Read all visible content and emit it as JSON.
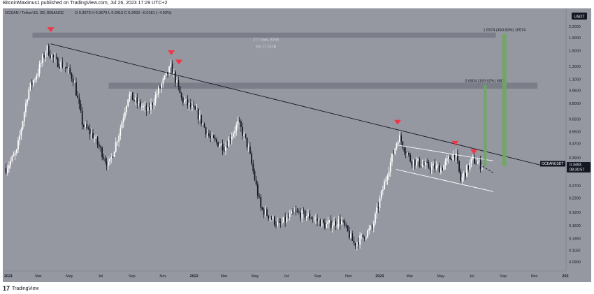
{
  "publisher_line": "BitcoinMaximus1 published on TradingView.com, Jul 26, 2023 17:29 UTC+2",
  "footer_brand": "TradingView",
  "footer_logo": "17",
  "chart_data": {
    "type": "candlestick",
    "symbol_header": "OCEAN / TetherUS, 3D, BINANCE",
    "ohlc_header": "O 0.3673  H 0.3679  L 0.3410  C 0.3493  −0.0181 (−4.93%)",
    "currency_badge": "USDT",
    "last_price": "0.3493",
    "countdown": "08:30:57",
    "symbol_tag": "OCEANUSDT",
    "y_scale": "log",
    "y_ticks": [
      2.2,
      1.9,
      1.6,
      1.3,
      1.1,
      0.95,
      0.8,
      0.65,
      0.55,
      0.47,
      0.39,
      0.33,
      0.27,
      0.23,
      0.19,
      0.16,
      0.135,
      0.115,
      0.099
    ],
    "y_tick_labels": [
      "2.2000",
      "1.9000",
      "1.6000",
      "1.3000",
      "1.1000",
      "0.9500",
      "0.8000",
      "0.6500",
      "0.5500",
      "0.4700",
      "0.3900",
      "0.3300",
      "0.2700",
      "0.2300",
      "0.1900",
      "0.1600",
      "0.1350",
      "0.1150",
      "0.0990"
    ],
    "x_labels": [
      {
        "date": "2021-01-01",
        "label": "2021",
        "bold": true
      },
      {
        "date": "2021-03-01",
        "label": "Mar"
      },
      {
        "date": "2021-05-01",
        "label": "May"
      },
      {
        "date": "2021-07-01",
        "label": "Jul"
      },
      {
        "date": "2021-09-01",
        "label": "Sep"
      },
      {
        "date": "2021-11-01",
        "label": "Nov"
      },
      {
        "date": "2022-01-01",
        "label": "2022",
        "bold": true
      },
      {
        "date": "2022-03-01",
        "label": "Mar"
      },
      {
        "date": "2022-05-01",
        "label": "May"
      },
      {
        "date": "2022-07-01",
        "label": "Jul"
      },
      {
        "date": "2022-09-01",
        "label": "Sep"
      },
      {
        "date": "2022-11-01",
        "label": "Nov"
      },
      {
        "date": "2023-01-01",
        "label": "2023",
        "bold": true
      },
      {
        "date": "2023-03-01",
        "label": "Mar"
      },
      {
        "date": "2023-05-01",
        "label": "May"
      },
      {
        "date": "2023-07-01",
        "label": "Jul"
      },
      {
        "date": "2023-09-01",
        "label": "Sep"
      },
      {
        "date": "2023-11-01",
        "label": "Nov"
      },
      {
        "date": "2024-01-01",
        "label": "202",
        "bold": true
      }
    ],
    "price_path": [
      {
        "date": "2020-12-30",
        "price": 0.34
      },
      {
        "date": "2021-01-20",
        "price": 0.42
      },
      {
        "date": "2021-02-12",
        "price": 0.95
      },
      {
        "date": "2021-03-02",
        "price": 1.2
      },
      {
        "date": "2021-03-20",
        "price": 1.65
      },
      {
        "date": "2021-04-05",
        "price": 1.4
      },
      {
        "date": "2021-04-25",
        "price": 1.3
      },
      {
        "date": "2021-05-12",
        "price": 1.1
      },
      {
        "date": "2021-05-30",
        "price": 0.6
      },
      {
        "date": "2021-06-20",
        "price": 0.52
      },
      {
        "date": "2021-07-20",
        "price": 0.35
      },
      {
        "date": "2021-08-10",
        "price": 0.55
      },
      {
        "date": "2021-08-28",
        "price": 0.9
      },
      {
        "date": "2021-09-15",
        "price": 0.8
      },
      {
        "date": "2021-10-05",
        "price": 0.72
      },
      {
        "date": "2021-10-30",
        "price": 1.0
      },
      {
        "date": "2021-11-20",
        "price": 1.3
      },
      {
        "date": "2021-12-10",
        "price": 0.85
      },
      {
        "date": "2022-01-10",
        "price": 0.7
      },
      {
        "date": "2022-02-05",
        "price": 0.5
      },
      {
        "date": "2022-03-05",
        "price": 0.45
      },
      {
        "date": "2022-04-01",
        "price": 0.62
      },
      {
        "date": "2022-04-20",
        "price": 0.45
      },
      {
        "date": "2022-05-15",
        "price": 0.2
      },
      {
        "date": "2022-06-20",
        "price": 0.16
      },
      {
        "date": "2022-07-20",
        "price": 0.19
      },
      {
        "date": "2022-08-20",
        "price": 0.18
      },
      {
        "date": "2022-09-20",
        "price": 0.16
      },
      {
        "date": "2022-10-20",
        "price": 0.17
      },
      {
        "date": "2022-11-15",
        "price": 0.125
      },
      {
        "date": "2022-12-20",
        "price": 0.155
      },
      {
        "date": "2023-01-20",
        "price": 0.33
      },
      {
        "date": "2023-02-10",
        "price": 0.52
      },
      {
        "date": "2023-03-05",
        "price": 0.38
      },
      {
        "date": "2023-04-05",
        "price": 0.35
      },
      {
        "date": "2023-05-05",
        "price": 0.34
      },
      {
        "date": "2023-06-01",
        "price": 0.42
      },
      {
        "date": "2023-06-12",
        "price": 0.29
      },
      {
        "date": "2023-07-05",
        "price": 0.38
      },
      {
        "date": "2023-07-25",
        "price": 0.349
      }
    ],
    "resistance_zones": [
      {
        "date_start": "2021-02-20",
        "date_end": "2023-08-20",
        "price_low": 1.9,
        "price_high": 2.03
      },
      {
        "date_start": "2021-07-20",
        "date_end": "2023-11-10",
        "price_low": 0.97,
        "price_high": 1.05
      }
    ],
    "descending_resistance_line": {
      "start": {
        "date": "2021-03-28",
        "price": 1.75
      },
      "end": {
        "date": "2023-11-15",
        "price": 0.355
      }
    },
    "channel_upper_line": {
      "start": {
        "date": "2023-02-10",
        "price": 0.46
      },
      "end": {
        "date": "2023-08-15",
        "price": 0.375
      }
    },
    "channel_lower_line": {
      "start": {
        "date": "2023-02-05",
        "price": 0.335
      },
      "end": {
        "date": "2023-08-15",
        "price": 0.25
      }
    },
    "projection_line": {
      "start": {
        "date": "2023-07-25",
        "price": 0.349
      },
      "end": {
        "date": "2023-08-15",
        "price": 0.32
      }
    },
    "targets": [
      {
        "date_start": "2023-07-27",
        "date_end": "2023-08-02",
        "price_from": 0.349,
        "price_to": 1.02,
        "label": "0.6804 (190.92%) 6804"
      },
      {
        "date_start": "2023-09-02",
        "date_end": "2023-09-10",
        "price_from": 0.35,
        "price_to": 2.0,
        "label": "1.6574 (460.60%) 16574"
      }
    ],
    "red_markers": [
      {
        "date": "2021-03-28",
        "price": 2.1
      },
      {
        "date": "2021-11-20",
        "price": 1.55
      },
      {
        "date": "2021-12-05",
        "price": 1.37
      },
      {
        "date": "2023-02-08",
        "price": 0.62
      },
      {
        "date": "2023-06-01",
        "price": 0.47
      },
      {
        "date": "2023-07-08",
        "price": 0.42
      }
    ],
    "measure_text": [
      "277 bars, 829d",
      "Vol 17.151B"
    ],
    "measure_date": "2022-05-25",
    "measure_price": 1.82,
    "colors": {
      "background": "#9598a1",
      "candle_up": "#ffffff",
      "candle_down": "#131722",
      "zone": "#787b86",
      "trendline": "#131722",
      "channel": "#ffffff",
      "marker": "#f23645",
      "target": "#6ca95b",
      "price_tag": "#131722"
    }
  }
}
